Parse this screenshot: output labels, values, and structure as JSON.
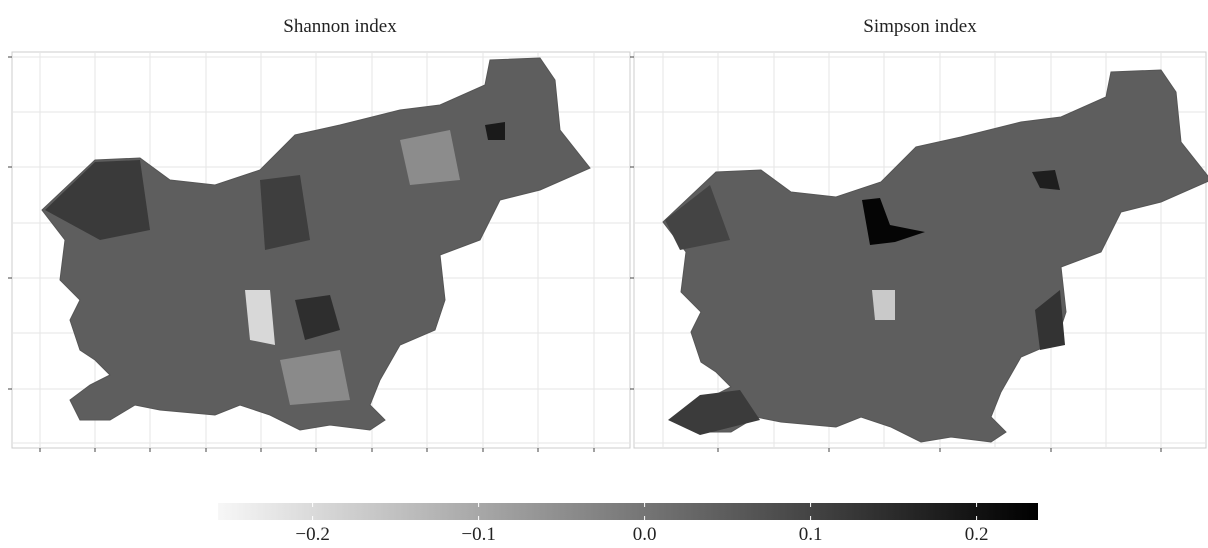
{
  "panels": [
    {
      "title": "Shannon index"
    },
    {
      "title": "Simpson index"
    }
  ],
  "colorbar": {
    "lim": [
      -0.257,
      0.237
    ],
    "ticks": [
      {
        "value": -0.2,
        "label": "−0.2"
      },
      {
        "value": -0.1,
        "label": "−0.1"
      },
      {
        "value": 0,
        "label": "0.0"
      },
      0.1,
      0.2
    ]
  }
}
